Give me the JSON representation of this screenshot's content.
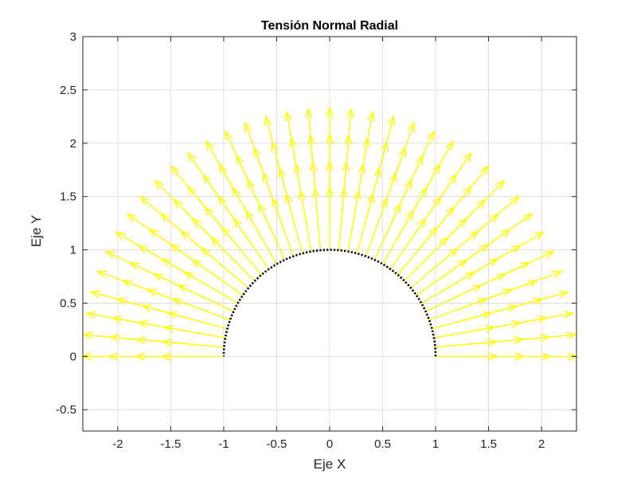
{
  "chart_data": {
    "type": "quiver",
    "title": "Tensión Normal Radial",
    "xlabel": "Eje X",
    "ylabel": "Eje Y",
    "xlim": [
      -2.33,
      2.33
    ],
    "ylim": [
      -0.7,
      3
    ],
    "xticks": [
      -2,
      -1.5,
      -1,
      -0.5,
      0,
      0.5,
      1,
      1.5,
      2
    ],
    "xtick_labels": [
      "-2",
      "-1.5",
      "-1",
      "-0.5",
      "0",
      "0.5",
      "1",
      "1.5",
      "2"
    ],
    "yticks": [
      -0.5,
      0,
      0.5,
      1,
      1.5,
      2,
      2.5,
      3
    ],
    "ytick_labels": [
      "-0.5",
      "0",
      "0.5",
      "1",
      "1.5",
      "2",
      "2.5",
      "3"
    ],
    "grid": true,
    "arrow_color": "#ffff00",
    "boundary_color": "#000000",
    "boundary": {
      "shape": "semicircle",
      "radius": 1,
      "style": "dotted"
    },
    "arrows": {
      "angles_deg_range": [
        0,
        180
      ],
      "angle_count": 37,
      "radii": [
        1.0,
        1.25,
        1.5,
        1.75
      ],
      "length": 0.58,
      "direction": "radial-outward"
    }
  }
}
